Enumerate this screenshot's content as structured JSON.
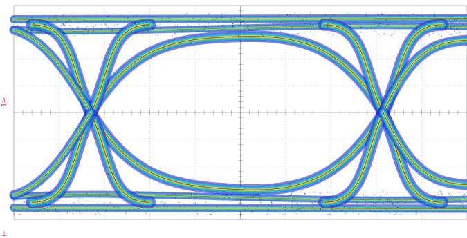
{
  "chart_data": {
    "type": "eye_diagram",
    "title": "",
    "xlabel": "",
    "ylabel": "",
    "grid": true,
    "grid_divisions": {
      "x": 10,
      "y": 8
    },
    "channel_marker": "1",
    "channel_marker_suffix": "≥",
    "bottom_marker": "⊥",
    "levels": {
      "high_outer": 0.87,
      "high_inner": 0.69,
      "low_inner": -0.69,
      "low_outer": -0.89
    },
    "crossings": [
      {
        "x": 1.7
      },
      {
        "x": 8.15
      }
    ],
    "colormap": [
      "#1e1ec8",
      "#3a6cf0",
      "#16c6d8",
      "#34e38c",
      "#e4ee3a",
      "#ff8a1a",
      "#e41414"
    ]
  }
}
